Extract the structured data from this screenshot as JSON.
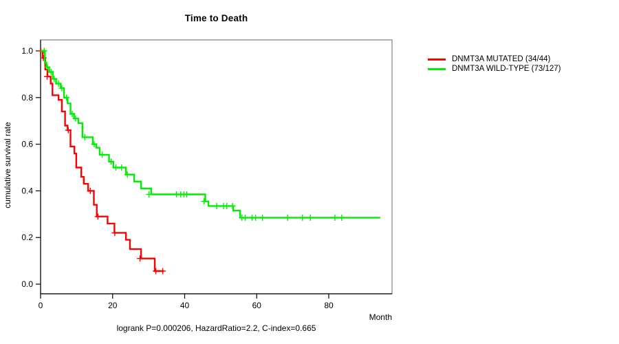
{
  "chart_data": {
    "type": "line",
    "subtype": "kaplan-meier-step",
    "title": "Time to Death",
    "xlabel": "Month",
    "ylabel": "cumulative survival rate",
    "footer": "logrank P=0.000206, HazardRatio=2.2, C-index=0.665",
    "x_ticks": [
      0,
      20,
      40,
      60,
      80
    ],
    "y_tick_labels": [
      "0.0",
      "0.2",
      "0.4",
      "0.6",
      "0.8",
      "1.0"
    ],
    "xlim": [
      0,
      97.5
    ],
    "ylim": [
      0,
      1.0
    ],
    "grid": "off",
    "legend_position": "right-outside",
    "colors": {
      "box": "#7d7d7d",
      "axis": "#000000",
      "text": "#000000"
    },
    "series": [
      {
        "name": "DNMT3A MUTATED (34/44)",
        "color": "#ff0000",
        "steps": [
          [
            0,
            1.0
          ],
          [
            0.6,
            0.97
          ],
          [
            1.3,
            0.92
          ],
          [
            1.9,
            0.89
          ],
          [
            2.8,
            0.86
          ],
          [
            3.3,
            0.81
          ],
          [
            5.0,
            0.79
          ],
          [
            5.9,
            0.74
          ],
          [
            6.8,
            0.68
          ],
          [
            7.5,
            0.66
          ],
          [
            8.3,
            0.59
          ],
          [
            9.4,
            0.56
          ],
          [
            9.9,
            0.5
          ],
          [
            11.3,
            0.46
          ],
          [
            12.0,
            0.43
          ],
          [
            13.2,
            0.4
          ],
          [
            14.8,
            0.34
          ],
          [
            15.6,
            0.29
          ],
          [
            18.6,
            0.26
          ],
          [
            20.5,
            0.22
          ],
          [
            23.7,
            0.19
          ],
          [
            24.8,
            0.15
          ],
          [
            27.9,
            0.11
          ],
          [
            31.7,
            0.056
          ]
        ],
        "end_time": 34.2,
        "censor_marks": [
          [
            0.1,
            1.0
          ],
          [
            0.8,
            0.97
          ],
          [
            1.8,
            0.89
          ],
          [
            7.7,
            0.66
          ],
          [
            13.8,
            0.4
          ],
          [
            15.9,
            0.29
          ],
          [
            20.6,
            0.22
          ],
          [
            27.6,
            0.11
          ],
          [
            32.0,
            0.056
          ],
          [
            33.9,
            0.056
          ]
        ]
      },
      {
        "name": "DNMT3A WILD-TYPE (73/127)",
        "color": "#00ee00",
        "steps": [
          [
            0,
            1.0
          ],
          [
            1.2,
            0.95
          ],
          [
            1.6,
            0.93
          ],
          [
            2.4,
            0.91
          ],
          [
            3.4,
            0.88
          ],
          [
            4.3,
            0.86
          ],
          [
            5.6,
            0.84
          ],
          [
            6.5,
            0.8
          ],
          [
            7.5,
            0.775
          ],
          [
            8.3,
            0.73
          ],
          [
            9.3,
            0.71
          ],
          [
            10.5,
            0.69
          ],
          [
            11.6,
            0.63
          ],
          [
            14.5,
            0.6
          ],
          [
            15.5,
            0.585
          ],
          [
            16.4,
            0.555
          ],
          [
            19.0,
            0.525
          ],
          [
            20.2,
            0.5
          ],
          [
            23.7,
            0.47
          ],
          [
            26.0,
            0.44
          ],
          [
            27.9,
            0.41
          ],
          [
            30.7,
            0.385
          ],
          [
            45.7,
            0.355
          ],
          [
            46.6,
            0.335
          ],
          [
            53.5,
            0.315
          ],
          [
            55.4,
            0.285
          ]
        ],
        "end_time": 94.3,
        "censor_marks": [
          [
            1.0,
            1.0
          ],
          [
            1.9,
            0.93
          ],
          [
            2.9,
            0.91
          ],
          [
            3.8,
            0.88
          ],
          [
            5.0,
            0.86
          ],
          [
            5.9,
            0.84
          ],
          [
            7.2,
            0.8
          ],
          [
            8.8,
            0.73
          ],
          [
            9.7,
            0.71
          ],
          [
            12.3,
            0.63
          ],
          [
            14.9,
            0.6
          ],
          [
            17.1,
            0.555
          ],
          [
            19.6,
            0.525
          ],
          [
            20.9,
            0.5
          ],
          [
            22.5,
            0.5
          ],
          [
            24.1,
            0.47
          ],
          [
            30.1,
            0.385
          ],
          [
            37.7,
            0.385
          ],
          [
            38.9,
            0.385
          ],
          [
            39.8,
            0.385
          ],
          [
            40.6,
            0.385
          ],
          [
            45.4,
            0.355
          ],
          [
            48.9,
            0.335
          ],
          [
            50.8,
            0.335
          ],
          [
            51.7,
            0.335
          ],
          [
            53.3,
            0.335
          ],
          [
            55.9,
            0.285
          ],
          [
            56.8,
            0.285
          ],
          [
            58.7,
            0.285
          ],
          [
            59.7,
            0.285
          ],
          [
            61.6,
            0.285
          ],
          [
            68.6,
            0.285
          ],
          [
            72.7,
            0.285
          ],
          [
            74.9,
            0.285
          ],
          [
            81.7,
            0.285
          ],
          [
            83.6,
            0.285
          ]
        ]
      }
    ]
  }
}
